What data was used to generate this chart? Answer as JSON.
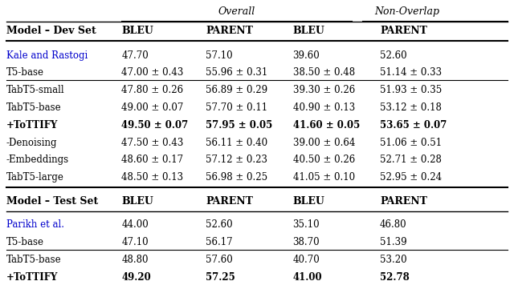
{
  "title_overall": "Overall",
  "title_nonoverlap": "Non-Overlap",
  "header_row": [
    "Model – Dev Set",
    "BLEU",
    "PARENT",
    "BLEU",
    "PARENT"
  ],
  "header_row2": [
    "Model – Test Set",
    "BLEU",
    "PARENT",
    "BLEU",
    "PARENT"
  ],
  "dev_rows": [
    {
      "model": "Kale and Rastogi",
      "bleu": "47.70",
      "parent": "57.10",
      "nbleu": "39.60",
      "nparent": "52.60",
      "blue_name": true,
      "bold": false,
      "smallcaps": false,
      "separator_before": false
    },
    {
      "model": "T5-base",
      "bleu": "47.00 ± 0.43",
      "parent": "55.96 ± 0.31",
      "nbleu": "38.50 ± 0.48",
      "nparent": "51.14 ± 0.33",
      "blue_name": false,
      "bold": false,
      "smallcaps": false,
      "separator_before": false
    },
    {
      "model": "TabT5-small",
      "bleu": "47.80 ± 0.26",
      "parent": "56.89 ± 0.29",
      "nbleu": "39.30 ± 0.26",
      "nparent": "51.93 ± 0.35",
      "blue_name": false,
      "bold": false,
      "smallcaps": true,
      "separator_before": true
    },
    {
      "model": "TabT5-base",
      "bleu": "49.00 ± 0.07",
      "parent": "57.70 ± 0.11",
      "nbleu": "40.90 ± 0.13",
      "nparent": "53.12 ± 0.18",
      "blue_name": false,
      "bold": false,
      "smallcaps": true,
      "separator_before": false
    },
    {
      "model": "+ToTTIFY",
      "bleu": "49.50 ± 0.07",
      "parent": "57.95 ± 0.05",
      "nbleu": "41.60 ± 0.05",
      "nparent": "53.65 ± 0.07",
      "blue_name": false,
      "bold": true,
      "smallcaps": false,
      "separator_before": false
    },
    {
      "model": "-Denoising",
      "bleu": "47.50 ± 0.43",
      "parent": "56.11 ± 0.40",
      "nbleu": "39.00 ± 0.64",
      "nparent": "51.06 ± 0.51",
      "blue_name": false,
      "bold": false,
      "smallcaps": false,
      "separator_before": false
    },
    {
      "model": "-Embeddings",
      "bleu": "48.60 ± 0.17",
      "parent": "57.12 ± 0.23",
      "nbleu": "40.50 ± 0.26",
      "nparent": "52.71 ± 0.28",
      "blue_name": false,
      "bold": false,
      "smallcaps": false,
      "separator_before": false
    },
    {
      "model": "TabT5-large",
      "bleu": "48.50 ± 0.13",
      "parent": "56.98 ± 0.25",
      "nbleu": "41.05 ± 0.10",
      "nparent": "52.95 ± 0.24",
      "blue_name": false,
      "bold": false,
      "smallcaps": true,
      "separator_before": false
    }
  ],
  "test_rows": [
    {
      "model": "Parikh et al.",
      "bleu": "44.00",
      "parent": "52.60",
      "nbleu": "35.10",
      "nparent": "46.80",
      "blue_name": true,
      "bold": false,
      "smallcaps": false,
      "separator_before": false
    },
    {
      "model": "T5-base",
      "bleu": "47.10",
      "parent": "56.17",
      "nbleu": "38.70",
      "nparent": "51.39",
      "blue_name": false,
      "bold": false,
      "smallcaps": false,
      "separator_before": false
    },
    {
      "model": "TabT5-base",
      "bleu": "48.80",
      "parent": "57.60",
      "nbleu": "40.70",
      "nparent": "53.20",
      "blue_name": false,
      "bold": false,
      "smallcaps": true,
      "separator_before": true
    },
    {
      "model": "+ToTTIFY",
      "bleu": "49.20",
      "parent": "57.25",
      "nbleu": "41.00",
      "nparent": "52.78",
      "blue_name": false,
      "bold": true,
      "smallcaps": false,
      "separator_before": false
    }
  ],
  "bg_color": "#ffffff",
  "text_color": "#000000",
  "blue_color": "#0000cc",
  "font_size": 8.5,
  "header_font_size": 9.0
}
